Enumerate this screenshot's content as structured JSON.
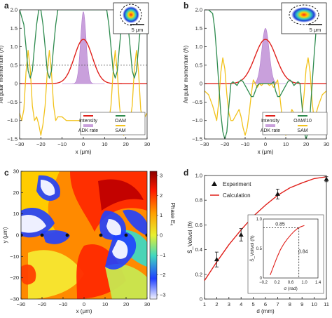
{
  "panels": {
    "a": {
      "label": "a"
    },
    "b": {
      "label": "b"
    },
    "c": {
      "label": "c"
    },
    "d": {
      "label": "d"
    }
  },
  "chart_data": [
    {
      "panel": "a",
      "type": "line",
      "xlabel": "x (μm)",
      "ylabel": "Angular momentum (ℏ)",
      "xlim": [
        -30,
        30
      ],
      "ylim": [
        -1.5,
        2
      ],
      "x_ticks": [
        "−30",
        "−20",
        "−10",
        "0",
        "10",
        "20",
        "30"
      ],
      "y_ticks": [
        "−1.5",
        "−1.0",
        "−0.5",
        "0",
        "0.5",
        "1.0",
        "1.5",
        "2.0"
      ],
      "dashed_line_y": 0.5,
      "inset_scale_label": "5 μm",
      "legend": [
        "Intensity",
        "OAM",
        "ADK rate",
        "SAM"
      ],
      "colors": {
        "intensity": "#e0201b",
        "oam": "#2e8b4f",
        "adk": "#c9a0dc",
        "sam": "#f2c21b"
      },
      "series": [
        {
          "name": "Intensity",
          "gaussian": {
            "amp": 1.2,
            "sigma": 4.2
          }
        },
        {
          "name": "ADK rate",
          "gaussian": {
            "amp": 1.95,
            "sigma": 1.3
          }
        },
        {
          "name": "OAM",
          "x": [
            -30,
            -28,
            -27,
            -26,
            -25,
            -24,
            -23,
            -22,
            -21,
            -20,
            -19,
            -18,
            -17,
            -16,
            -15,
            -14,
            -13,
            -12,
            -11,
            -10,
            -9,
            -8,
            -7,
            -6,
            -5,
            -4,
            -3,
            -2,
            -1,
            0,
            1,
            2,
            3,
            4,
            5,
            6,
            7,
            8,
            9,
            10,
            11,
            12,
            13,
            14,
            15,
            16,
            17,
            18,
            19,
            20,
            21,
            22,
            23,
            24,
            25,
            26,
            27,
            28,
            30
          ],
          "y": [
            2,
            1.6,
            1.0,
            0.35,
            0.15,
            0.35,
            1.0,
            1.6,
            2,
            2,
            1.6,
            1.0,
            0.35,
            0.15,
            0.35,
            1.0,
            1.6,
            2,
            2,
            2,
            2,
            2,
            2,
            2,
            2,
            2,
            2,
            2,
            2,
            2,
            2,
            2,
            2,
            2,
            2,
            2,
            2,
            2,
            2,
            2,
            2,
            1.6,
            1.0,
            0.35,
            0.15,
            0.35,
            1.0,
            1.6,
            2,
            2,
            1.6,
            1.0,
            0.35,
            0.15,
            0.35,
            1.0,
            1.6,
            2,
            2
          ]
        },
        {
          "name": "SAM",
          "x": [
            -30,
            -29,
            -28,
            -27,
            -26,
            -25,
            -24,
            -23,
            -22,
            -21,
            -20,
            -19,
            -18,
            -17,
            -16,
            -15,
            -14,
            -13,
            -12,
            -11,
            -10,
            -9,
            -8,
            -7,
            -6,
            -5,
            -4,
            -3,
            -2,
            -1,
            0,
            1,
            2,
            3,
            4,
            5,
            6,
            7,
            8,
            9,
            10,
            11,
            12,
            13,
            14,
            15,
            16,
            17,
            18,
            19,
            20,
            21,
            22,
            23,
            24,
            25,
            26,
            27,
            28,
            29,
            30
          ],
          "y": [
            -0.8,
            -1.0,
            -0.7,
            0.3,
            0.9,
            0.4,
            -0.6,
            -1.0,
            -0.9,
            -1.1,
            -1.4,
            -1.1,
            -0.6,
            0.3,
            0.9,
            0.3,
            -0.6,
            -1.0,
            -0.9,
            -0.9,
            -0.9,
            -0.95,
            -1.0,
            -1.0,
            -1.0,
            -1.0,
            -1.0,
            -1.0,
            -1.0,
            -1.0,
            -1.0,
            -1.0,
            -1.0,
            -1.0,
            -1.0,
            -1.0,
            -1.0,
            -1.0,
            -0.95,
            -0.9,
            -0.9,
            -0.9,
            -1.0,
            -0.6,
            0.3,
            0.9,
            0.3,
            -0.6,
            -1.1,
            -1.4,
            -1.1,
            -0.9,
            -1.0,
            -0.6,
            0.4,
            0.9,
            0.3,
            -0.7,
            -1.0,
            -0.9,
            -0.8
          ]
        }
      ]
    },
    {
      "panel": "b",
      "type": "line",
      "xlabel": "x (μm)",
      "ylabel": "Angular momentum (ℏ)",
      "xlim": [
        -30,
        30
      ],
      "ylim": [
        -1.5,
        2
      ],
      "x_ticks": [
        "−30",
        "−20",
        "−10",
        "0",
        "10",
        "20",
        "30"
      ],
      "y_ticks": [
        "−1.5",
        "−1.0",
        "−0.5",
        "0",
        "0.5",
        "1.0",
        "1.5",
        "2.0"
      ],
      "inset_scale_label": "5 μm",
      "legend": [
        "Intensity",
        "OAM/10",
        "ADK rate",
        "SAM"
      ],
      "colors": {
        "intensity": "#e0201b",
        "oam": "#2e8b4f",
        "adk": "#c9a0dc",
        "sam": "#f2c21b"
      },
      "series": [
        {
          "name": "Intensity",
          "gaussian": {
            "amp": 1.2,
            "sigma": 5.2
          }
        },
        {
          "name": "ADK rate",
          "gaussian": {
            "amp": 1.5,
            "sigma": 1.8
          }
        },
        {
          "name": "OAM/10",
          "x": [
            -30,
            -28,
            -26,
            -25,
            -24,
            -23,
            -22,
            -21,
            -20,
            -19,
            -18,
            -17,
            -16,
            -15,
            -14,
            -13,
            -12,
            -11,
            -10,
            -9,
            -8,
            -7,
            -6,
            -5,
            -4,
            -3,
            -2,
            -1,
            0,
            1,
            2,
            3,
            4,
            5,
            6,
            7,
            8,
            9,
            10,
            11,
            12,
            13,
            14,
            15,
            16,
            17,
            18,
            19,
            20,
            21,
            22,
            23,
            24,
            25,
            26,
            28,
            30
          ],
          "y": [
            2,
            2,
            1.9,
            1.5,
            0.8,
            0,
            -0.8,
            -1.3,
            -1.5,
            -1.3,
            -0.6,
            0,
            0.05,
            0,
            -0.05,
            0.05,
            0.1,
            0.05,
            -0.05,
            -0.15,
            -0.25,
            -0.35,
            -0.35,
            -0.2,
            -0.05,
            0,
            0,
            0,
            0,
            0,
            0,
            0,
            0.05,
            -0.2,
            -0.35,
            -0.35,
            -0.25,
            -0.15,
            -0.05,
            0.05,
            0.1,
            0.05,
            -0.05,
            0,
            0.05,
            0,
            -0.6,
            -1.3,
            -1.5,
            -1.3,
            -0.8,
            0,
            0.8,
            1.5,
            1.9,
            2,
            2
          ]
        },
        {
          "name": "SAM",
          "x": [
            -30,
            -28,
            -26,
            -24,
            -23,
            -22,
            -21,
            -20,
            -19,
            -18,
            -17,
            -16,
            -15,
            -14,
            -13,
            -12,
            -11,
            -10,
            -9,
            -8,
            -7,
            -6,
            -5,
            -4,
            -3,
            -2,
            -1,
            0,
            1,
            2,
            3,
            4,
            5,
            6,
            7,
            8,
            9,
            10,
            11,
            12,
            13,
            14,
            15,
            16,
            17,
            18,
            19,
            20,
            21,
            22,
            23,
            24,
            26,
            28,
            30
          ],
          "y": [
            -0.2,
            -0.3,
            -0.6,
            -1.0,
            -0.5,
            0.3,
            0.7,
            0.4,
            -0.3,
            -0.8,
            -1.0,
            -1.0,
            -0.9,
            -0.8,
            -0.7,
            -0.9,
            -1.2,
            -1.4,
            -1.2,
            -0.8,
            -0.3,
            0.1,
            0.0,
            -0.1,
            0.0,
            -0.05,
            0.0,
            0.0,
            0.0,
            -0.05,
            0.0,
            -0.1,
            0.0,
            0.1,
            -0.3,
            -0.8,
            -1.2,
            -1.4,
            -1.2,
            -0.9,
            -0.7,
            -0.8,
            -0.9,
            -1.0,
            -1.0,
            -0.8,
            -0.3,
            0.4,
            0.7,
            0.3,
            -0.5,
            -1.0,
            -0.6,
            -0.3,
            -0.2
          ]
        }
      ]
    },
    {
      "panel": "c",
      "type": "heatmap",
      "xlabel": "x (μm)",
      "ylabel": "y (μm)",
      "xlim": [
        -30,
        30
      ],
      "ylim": [
        -30,
        30
      ],
      "x_ticks": [
        "−30",
        "−20",
        "−10",
        "0",
        "10",
        "20",
        "30"
      ],
      "y_ticks": [
        "−30",
        "−20",
        "−10",
        "0",
        "10",
        "20",
        "30"
      ],
      "colorbar_label": "Phase Eₓ",
      "colorbar_ticks": [
        "3",
        "2",
        "1",
        "0",
        "−1",
        "−2",
        "−3"
      ],
      "colorbar_range": [
        -3,
        3
      ],
      "singularities_x": [
        -30,
        -20,
        -8,
        8,
        20,
        30
      ]
    },
    {
      "panel": "d",
      "type": "scatter",
      "xlabel": "d (mm)",
      "ylabel": "S̄_Voltvol (ℏ)",
      "xlim": [
        1,
        11
      ],
      "ylim": [
        0,
        1.0
      ],
      "x_ticks": [
        "1",
        "2",
        "3",
        "4",
        "5",
        "6",
        "7",
        "8",
        "9",
        "10",
        "11"
      ],
      "y_ticks": [
        "0",
        "0.2",
        "0.4",
        "0.6",
        "0.8",
        "1.0"
      ],
      "legend": [
        "Experiment",
        "Calculation"
      ],
      "series": [
        {
          "name": "Experiment",
          "x": [
            2,
            4,
            7,
            11
          ],
          "y": [
            0.32,
            0.52,
            0.85,
            0.97
          ],
          "yerr": [
            0.06,
            0.05,
            0.04,
            0.02
          ]
        },
        {
          "name": "Calculation",
          "x": [
            1,
            2,
            3,
            4,
            5,
            6,
            7,
            8,
            9,
            10,
            11
          ],
          "y": [
            0.15,
            0.3,
            0.44,
            0.56,
            0.67,
            0.76,
            0.84,
            0.9,
            0.94,
            0.975,
            0.99
          ]
        }
      ],
      "inset": {
        "xlabel": "σ (rad)",
        "ylabel": "S̄_Voltvol (ℏ)",
        "xlim": [
          -0.2,
          1.4
        ],
        "ylim": [
          0,
          1.0
        ],
        "x_ticks": [
          "−0.2",
          "0.2",
          "0.6",
          "1.0",
          "1.4"
        ],
        "y_ticks": [
          "0",
          "0.5",
          "1.0"
        ],
        "annotations": [
          "0.85",
          "0.84"
        ],
        "marker": {
          "x": 0.84,
          "y": 0.85
        },
        "curve": {
          "x": [
            0,
            0.1,
            0.2,
            0.3,
            0.4,
            0.5,
            0.6,
            0.7,
            0.8,
            0.9,
            1.0
          ],
          "y": [
            0.05,
            0.2,
            0.35,
            0.48,
            0.58,
            0.66,
            0.73,
            0.79,
            0.84,
            0.87,
            0.89
          ]
        }
      }
    }
  ]
}
